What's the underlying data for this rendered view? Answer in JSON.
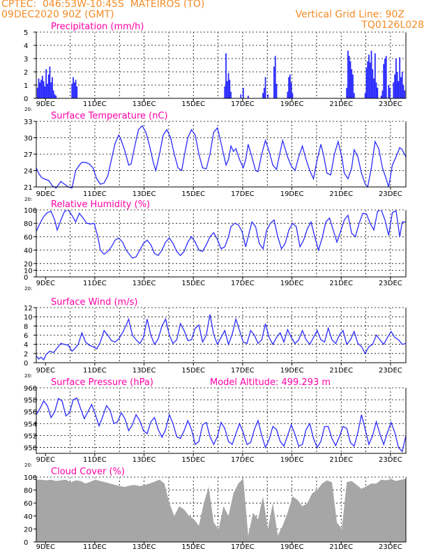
{
  "header": {
    "line1_left": "CPTEC:  046:53W-10:45S  MATEIROS (TO)",
    "line2_left": "09DEC2020 90Z (GMT)",
    "line2_right": "Vertical Grid Line: 90Z",
    "line3_right": "TQ0126L028",
    "model_altitude": "Model Altitude: 499.293 m"
  },
  "colors": {
    "title": "#ff00a8",
    "header": "#f28c28",
    "line": "#2b2bff",
    "fill": "#a6a6a6"
  },
  "x_ticks": [
    "9DEC",
    "11DEC",
    "13DEC",
    "15DEC",
    "17DEC",
    "19DEC",
    "21DEC",
    "23DEC"
  ],
  "clipped_label": "20:",
  "chart_data": [
    {
      "type": "bar",
      "title": "Precipitation (mm/h)",
      "ylim": [
        0,
        5
      ],
      "yticks": [
        "0",
        "1",
        "2",
        "3",
        "4",
        "5"
      ],
      "xlim": [
        9,
        24
      ],
      "x": [
        9.05,
        9.1,
        9.15,
        9.2,
        9.25,
        9.3,
        9.35,
        9.4,
        9.45,
        9.5,
        9.55,
        9.6,
        9.65,
        9.7,
        9.75,
        9.8,
        10.45,
        10.5,
        10.55,
        10.6,
        10.65,
        16.65,
        16.7,
        16.75,
        16.8,
        16.85,
        16.9,
        17.3,
        17.4,
        17.6,
        18.2,
        18.25,
        18.3,
        18.4,
        18.65,
        18.7,
        18.75,
        19.2,
        19.25,
        19.3,
        19.35,
        19.4,
        21.6,
        21.65,
        21.7,
        21.75,
        21.8,
        21.85,
        21.9,
        22.35,
        22.4,
        22.45,
        22.5,
        22.55,
        22.6,
        22.65,
        22.7,
        22.75,
        22.8,
        22.85,
        23.0,
        23.05,
        23.1,
        23.15,
        23.2,
        23.3,
        23.35,
        23.5,
        23.55,
        23.6,
        23.65,
        23.7,
        23.75,
        23.8,
        23.85,
        23.9,
        23.95
      ],
      "values": [
        0.8,
        1.5,
        1.2,
        1.4,
        1.7,
        1.3,
        0.9,
        2.2,
        1.1,
        1.8,
        2.4,
        1.2,
        1.6,
        0.6,
        0.3,
        0.2,
        1.1,
        1.6,
        1.2,
        1.4,
        0.9,
        0.9,
        3.4,
        1.3,
        1.9,
        1.4,
        0.5,
        0.3,
        0.8,
        0.2,
        0.4,
        0.8,
        1.6,
        0.3,
        2.4,
        3.2,
        1.1,
        0.5,
        1.6,
        1.8,
        1.2,
        0.4,
        0.8,
        3.6,
        3.2,
        2.8,
        2.2,
        1.8,
        0.4,
        0.4,
        2.3,
        2.8,
        3.3,
        2.7,
        3.6,
        2.2,
        1.5,
        3.4,
        1.2,
        0.8,
        0.2,
        0.6,
        2.6,
        3.0,
        3.2,
        1.0,
        0.8,
        1.2,
        1.8,
        3.0,
        2.0,
        1.3,
        3.1,
        1.6,
        2.0,
        1.0,
        0.6
      ]
    },
    {
      "type": "line",
      "title": "Surface Temperature (nC)",
      "ylim": [
        21,
        33
      ],
      "yticks": [
        "21",
        "24",
        "27",
        "30",
        "33"
      ],
      "xlim": [
        9,
        24
      ],
      "x": [
        9.0,
        9.1,
        9.2,
        9.3,
        9.5,
        9.65,
        9.8,
        10.0,
        10.15,
        10.3,
        10.45,
        10.6,
        10.75,
        10.85,
        11.0,
        11.15,
        11.3,
        11.45,
        11.6,
        11.75,
        11.9,
        12.05,
        12.2,
        12.35,
        12.45,
        12.6,
        12.75,
        12.85,
        13.0,
        13.15,
        13.3,
        13.45,
        13.6,
        13.75,
        13.85,
        14.0,
        14.15,
        14.3,
        14.45,
        14.6,
        14.75,
        14.9,
        15.0,
        15.15,
        15.3,
        15.45,
        15.6,
        15.75,
        15.9,
        16.05,
        16.2,
        16.35,
        16.45,
        16.6,
        16.7,
        16.8,
        16.9,
        17.0,
        17.1,
        17.25,
        17.4,
        17.5,
        17.6,
        17.75,
        17.9,
        18.0,
        18.15,
        18.3,
        18.45,
        18.6,
        18.75,
        18.9,
        19.0,
        19.2,
        19.35,
        19.5,
        19.65,
        19.8,
        19.95,
        20.1,
        20.25,
        20.4,
        20.55,
        20.65,
        20.8,
        20.95,
        21.1,
        21.25,
        21.4,
        21.5,
        21.65,
        21.8,
        21.9,
        22.05,
        22.2,
        22.35,
        22.45,
        22.6,
        22.75,
        22.9,
        23.05,
        23.2,
        23.3,
        23.45,
        23.6,
        23.75,
        23.85,
        24.0
      ],
      "values": [
        24.5,
        23.5,
        22.8,
        22.5,
        22.2,
        21.2,
        20.8,
        22.0,
        21.5,
        21.0,
        20.8,
        24.0,
        25.0,
        25.5,
        25.5,
        25.2,
        24.5,
        22.5,
        21.5,
        21.7,
        23.0,
        26.0,
        29.0,
        30.5,
        29.5,
        27.5,
        25.0,
        25.2,
        28.5,
        31.5,
        32.2,
        31.0,
        28.5,
        25.5,
        24.0,
        27.0,
        30.5,
        31.5,
        30.0,
        27.0,
        24.5,
        24.0,
        26.5,
        30.0,
        31.5,
        30.5,
        27.0,
        24.5,
        24.3,
        27.0,
        31.0,
        31.8,
        30.0,
        27.0,
        25.0,
        26.0,
        28.5,
        27.5,
        28.0,
        26.0,
        24.5,
        26.0,
        28.8,
        26.5,
        24.0,
        23.8,
        27.0,
        29.5,
        27.5,
        25.0,
        24.2,
        27.5,
        29.5,
        26.5,
        24.8,
        24.0,
        26.5,
        28.5,
        26.0,
        24.0,
        22.5,
        26.0,
        28.8,
        27.0,
        23.5,
        23.2,
        27.0,
        29.3,
        26.5,
        23.5,
        22.5,
        24.5,
        27.8,
        26.5,
        23.5,
        21.5,
        21.0,
        24.5,
        29.3,
        28.0,
        24.5,
        22.5,
        21.0,
        25.0,
        26.5,
        28.2,
        27.8,
        26.5
      ]
    },
    {
      "type": "line",
      "title": "Relative Humidity (%)",
      "ylim": [
        0,
        100
      ],
      "yticks": [
        "0",
        "10",
        "20",
        "40",
        "60",
        "80",
        "100"
      ],
      "xlim": [
        9,
        24
      ],
      "x": [
        9.0,
        9.15,
        9.3,
        9.45,
        9.6,
        9.75,
        9.85,
        10.0,
        10.15,
        10.3,
        10.45,
        10.6,
        10.75,
        10.9,
        11.05,
        11.2,
        11.35,
        11.5,
        11.6,
        11.75,
        11.9,
        12.05,
        12.2,
        12.35,
        12.5,
        12.65,
        12.75,
        12.9,
        13.05,
        13.2,
        13.35,
        13.5,
        13.65,
        13.8,
        13.95,
        14.1,
        14.25,
        14.4,
        14.55,
        14.7,
        14.85,
        15.0,
        15.15,
        15.3,
        15.45,
        15.6,
        15.75,
        15.9,
        16.05,
        16.2,
        16.35,
        16.5,
        16.65,
        16.8,
        16.9,
        17.05,
        17.2,
        17.35,
        17.5,
        17.6,
        17.75,
        17.9,
        18.05,
        18.2,
        18.35,
        18.5,
        18.65,
        18.8,
        18.95,
        19.1,
        19.25,
        19.4,
        19.55,
        19.7,
        19.85,
        20.0,
        20.15,
        20.3,
        20.45,
        20.6,
        20.75,
        20.9,
        21.05,
        21.2,
        21.35,
        21.5,
        21.65,
        21.8,
        21.95,
        22.1,
        22.25,
        22.4,
        22.55,
        22.7,
        22.85,
        23.0,
        23.15,
        23.3,
        23.45,
        23.6,
        23.75,
        23.85,
        24.0
      ],
      "values": [
        68,
        80,
        90,
        96,
        98,
        85,
        70,
        85,
        98,
        100,
        92,
        82,
        95,
        88,
        80,
        79,
        80,
        60,
        40,
        34,
        38,
        45,
        55,
        58,
        52,
        40,
        35,
        28,
        30,
        40,
        50,
        55,
        48,
        35,
        32,
        40,
        52,
        58,
        50,
        38,
        32,
        38,
        52,
        60,
        52,
        40,
        38,
        48,
        60,
        66,
        56,
        42,
        45,
        60,
        75,
        80,
        78,
        68,
        45,
        60,
        82,
        75,
        50,
        42,
        70,
        80,
        85,
        60,
        42,
        50,
        70,
        80,
        75,
        45,
        55,
        72,
        82,
        60,
        40,
        58,
        82,
        88,
        70,
        52,
        68,
        85,
        92,
        65,
        60,
        80,
        95,
        94,
        80,
        70,
        98,
        100,
        85,
        62,
        96,
        99,
        60,
        82,
        82
      ]
    },
    {
      "type": "line",
      "title": "Surface Wind (m/s)",
      "ylim": [
        0,
        12
      ],
      "yticks": [
        "0",
        "2",
        "4",
        "6",
        "8",
        "10",
        "12"
      ],
      "xlim": [
        9,
        24
      ],
      "x": [
        9.0,
        9.1,
        9.2,
        9.3,
        9.4,
        9.55,
        9.7,
        9.85,
        10.0,
        10.15,
        10.3,
        10.45,
        10.55,
        10.7,
        10.85,
        11.0,
        11.15,
        11.3,
        11.45,
        11.6,
        11.75,
        11.9,
        12.05,
        12.2,
        12.35,
        12.5,
        12.65,
        12.75,
        12.9,
        13.05,
        13.2,
        13.35,
        13.5,
        13.65,
        13.8,
        13.95,
        14.1,
        14.25,
        14.4,
        14.55,
        14.7,
        14.85,
        15.0,
        15.15,
        15.3,
        15.45,
        15.6,
        15.75,
        15.9,
        16.05,
        16.2,
        16.35,
        16.5,
        16.65,
        16.8,
        16.95,
        17.1,
        17.25,
        17.4,
        17.55,
        17.7,
        17.85,
        18.0,
        18.15,
        18.3,
        18.45,
        18.6,
        18.75,
        18.9,
        19.05,
        19.2,
        19.35,
        19.5,
        19.65,
        19.8,
        19.95,
        20.1,
        20.25,
        20.4,
        20.55,
        20.7,
        20.85,
        21.0,
        21.15,
        21.3,
        21.45,
        21.6,
        21.75,
        21.9,
        22.05,
        22.2,
        22.35,
        22.5,
        22.65,
        22.8,
        22.95,
        23.1,
        23.25,
        23.4,
        23.55,
        23.7,
        23.85,
        24.0
      ],
      "values": [
        1.5,
        0.8,
        1.2,
        0.6,
        1.8,
        2.5,
        2.2,
        3.2,
        4.2,
        4.0,
        3.8,
        2.5,
        3.0,
        4.0,
        6.5,
        4.5,
        3.8,
        3.5,
        3.0,
        4.5,
        7.0,
        6.0,
        4.8,
        4.5,
        5.2,
        6.5,
        8.2,
        9.5,
        6.0,
        5.0,
        4.2,
        5.5,
        9.5,
        6.0,
        4.0,
        5.2,
        8.0,
        9.5,
        6.0,
        4.2,
        5.0,
        8.5,
        7.0,
        4.8,
        5.0,
        7.5,
        8.2,
        4.5,
        6.0,
        10.5,
        6.2,
        4.0,
        5.5,
        7.0,
        4.0,
        6.2,
        9.5,
        7.0,
        4.5,
        4.2,
        7.0,
        6.0,
        4.2,
        5.0,
        8.5,
        5.5,
        4.0,
        5.5,
        6.5,
        4.5,
        7.2,
        5.5,
        4.2,
        5.0,
        7.0,
        5.0,
        4.0,
        5.5,
        7.0,
        5.0,
        4.5,
        7.5,
        5.0,
        4.2,
        6.0,
        7.0,
        4.0,
        5.0,
        6.8,
        4.2,
        3.5,
        2.0,
        3.5,
        4.0,
        6.0,
        5.0,
        4.0,
        5.5,
        6.8,
        5.5,
        5.0,
        4.0,
        4.2
      ]
    },
    {
      "type": "line",
      "title": "Surface Pressure (hPa)",
      "ylim": [
        949,
        960
      ],
      "yticks": [
        "950",
        "952",
        "954",
        "956",
        "958",
        "960"
      ],
      "xlim": [
        9,
        24
      ],
      "x": [
        9.0,
        9.15,
        9.3,
        9.45,
        9.6,
        9.75,
        9.9,
        10.05,
        10.2,
        10.35,
        10.5,
        10.65,
        10.8,
        10.95,
        11.1,
        11.25,
        11.4,
        11.55,
        11.7,
        11.85,
        12.0,
        12.15,
        12.3,
        12.45,
        12.6,
        12.75,
        12.9,
        13.05,
        13.2,
        13.35,
        13.5,
        13.65,
        13.8,
        13.95,
        14.1,
        14.25,
        14.4,
        14.55,
        14.7,
        14.85,
        15.0,
        15.15,
        15.3,
        15.45,
        15.6,
        15.75,
        15.9,
        16.05,
        16.2,
        16.35,
        16.5,
        16.65,
        16.8,
        16.95,
        17.1,
        17.25,
        17.4,
        17.55,
        17.7,
        17.85,
        18.0,
        18.15,
        18.3,
        18.45,
        18.6,
        18.75,
        18.9,
        19.05,
        19.2,
        19.35,
        19.5,
        19.65,
        19.8,
        19.95,
        20.1,
        20.25,
        20.4,
        20.55,
        20.7,
        20.85,
        21.0,
        21.15,
        21.3,
        21.45,
        21.6,
        21.75,
        21.9,
        22.05,
        22.2,
        22.35,
        22.5,
        22.65,
        22.8,
        22.95,
        23.1,
        23.25,
        23.4,
        23.55,
        23.7,
        23.85,
        24.0
      ],
      "values": [
        955.5,
        956.5,
        957.8,
        957.0,
        955.0,
        956.0,
        958.2,
        957.8,
        955.3,
        955.8,
        958.0,
        958.3,
        956.5,
        954.8,
        956.0,
        957.2,
        955.5,
        953.6,
        955.2,
        957.0,
        956.2,
        954.0,
        954.3,
        955.8,
        954.8,
        952.8,
        953.8,
        955.5,
        954.5,
        952.8,
        952.3,
        954.3,
        955.0,
        953.0,
        951.7,
        953.0,
        955.5,
        954.0,
        951.8,
        951.5,
        952.8,
        954.5,
        953.0,
        950.5,
        951.0,
        953.8,
        954.2,
        951.8,
        950.5,
        951.8,
        954.2,
        953.2,
        951.0,
        950.5,
        952.3,
        954.0,
        952.5,
        950.5,
        950.8,
        953.0,
        954.5,
        952.0,
        950.0,
        951.3,
        953.5,
        953.0,
        951.0,
        950.2,
        952.0,
        953.8,
        952.2,
        950.2,
        950.5,
        953.0,
        954.0,
        951.5,
        950.0,
        951.0,
        953.5,
        953.5,
        951.5,
        950.3,
        951.8,
        953.5,
        953.2,
        950.8,
        950.2,
        952.5,
        955.5,
        953.0,
        950.5,
        952.0,
        954.3,
        952.2,
        950.5,
        952.5,
        954.2,
        952.5,
        950.0,
        949.3,
        952.0
      ]
    },
    {
      "type": "area",
      "title": "Cloud Cover (%)",
      "ylim": [
        0,
        100
      ],
      "yticks": [
        "0",
        "20",
        "40",
        "60",
        "80",
        "100"
      ],
      "xlim": [
        9,
        24
      ],
      "x": [
        9.0,
        9.2,
        9.4,
        9.6,
        9.8,
        10.0,
        10.2,
        10.4,
        10.6,
        10.8,
        11.0,
        11.2,
        11.4,
        11.6,
        11.8,
        12.0,
        12.2,
        12.4,
        12.6,
        12.8,
        13.0,
        13.2,
        13.4,
        13.6,
        13.8,
        14.0,
        14.2,
        14.4,
        14.6,
        14.8,
        15.0,
        15.2,
        15.4,
        15.6,
        15.8,
        16.0,
        16.2,
        16.4,
        16.6,
        16.8,
        17.0,
        17.2,
        17.4,
        17.6,
        17.8,
        18.0,
        18.2,
        18.4,
        18.6,
        18.8,
        19.0,
        19.2,
        19.4,
        19.6,
        19.8,
        20.0,
        20.2,
        20.4,
        20.6,
        20.8,
        21.0,
        21.2,
        21.4,
        21.6,
        21.8,
        22.0,
        22.2,
        22.4,
        22.6,
        22.8,
        23.0,
        23.2,
        23.4,
        23.6,
        23.8,
        24.0
      ],
      "values": [
        96,
        96,
        95,
        96,
        94,
        95,
        96,
        92,
        95,
        94,
        90,
        93,
        96,
        94,
        92,
        90,
        88,
        86,
        85,
        87,
        88,
        86,
        88,
        90,
        93,
        96,
        90,
        60,
        40,
        55,
        50,
        40,
        35,
        25,
        60,
        85,
        30,
        20,
        55,
        40,
        75,
        90,
        98,
        10,
        45,
        35,
        70,
        20,
        60,
        10,
        25,
        45,
        70,
        65,
        55,
        60,
        75,
        80,
        90,
        95,
        92,
        30,
        20,
        92,
        94,
        88,
        82,
        86,
        90,
        90,
        96,
        95,
        97,
        94,
        96,
        97
      ]
    }
  ]
}
